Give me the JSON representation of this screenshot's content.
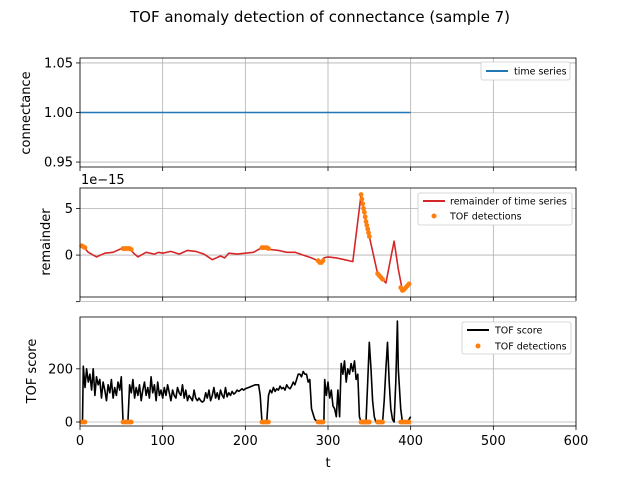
{
  "title": "TOF anomaly detection of connectance (sample 7)",
  "chart_data": [
    {
      "type": "line",
      "ylabel": "connectance",
      "xlim": [
        0,
        600
      ],
      "ylim": [
        0.945,
        1.055
      ],
      "yticks": [
        0.95,
        1.0,
        1.05
      ],
      "ytick_labels": [
        "0.95",
        "1.00",
        "1.05"
      ],
      "grid": true,
      "legend_position": "top-right",
      "series": [
        {
          "name": "time series",
          "color": "#1f77b4",
          "x": [
            0,
            400
          ],
          "y": [
            1.0,
            1.0
          ]
        }
      ]
    },
    {
      "type": "line",
      "ylabel": "remainder",
      "offset_label": "1e−15",
      "xlim": [
        0,
        600
      ],
      "ylim": [
        -4.5,
        7.2
      ],
      "yticks": [
        -5,
        0,
        5
      ],
      "ytick_labels": [
        "",
        "0",
        "5"
      ],
      "grid": true,
      "legend_position": "top-right",
      "series": [
        {
          "name": "remainder of time series",
          "color": "#d62728",
          "x": [
            0,
            5,
            10,
            20,
            30,
            40,
            50,
            60,
            65,
            70,
            80,
            90,
            95,
            100,
            110,
            120,
            130,
            140,
            150,
            160,
            170,
            175,
            180,
            190,
            200,
            210,
            220,
            225,
            230,
            240,
            250,
            260,
            270,
            280,
            285,
            290,
            295,
            300,
            310,
            320,
            330,
            340,
            345,
            350,
            360,
            365,
            370,
            380,
            385,
            390,
            395,
            400
          ],
          "y": [
            1.0,
            0.8,
            0.3,
            -0.2,
            0.2,
            0.3,
            0.7,
            0.7,
            0.2,
            -0.2,
            0.3,
            0.1,
            0.3,
            0.2,
            0.4,
            0.1,
            0.5,
            0.4,
            0.1,
            -0.5,
            -0.1,
            -0.3,
            0.2,
            0.1,
            0.2,
            0.3,
            0.8,
            0.8,
            0.6,
            0.5,
            0.3,
            0.3,
            0.0,
            -0.3,
            -0.5,
            -0.8,
            -0.3,
            -0.2,
            -0.3,
            -0.5,
            -0.7,
            6.5,
            4.0,
            2.0,
            -2.0,
            -2.5,
            -3.0,
            1.5,
            -1.5,
            -3.8,
            -3.3,
            -3.0
          ]
        },
        {
          "name": "TOF detections",
          "color": "#ff7f0e",
          "x": [
            2,
            4,
            6,
            52,
            54,
            56,
            58,
            60,
            62,
            220,
            222,
            224,
            226,
            228,
            288,
            290,
            292,
            294,
            340,
            341,
            342,
            343,
            344,
            345,
            346,
            347,
            348,
            349,
            350,
            360,
            362,
            364,
            366,
            388,
            390,
            392,
            394,
            396,
            398
          ],
          "y": [
            1.0,
            0.9,
            0.8,
            0.7,
            0.7,
            0.7,
            0.7,
            0.7,
            0.6,
            0.8,
            0.8,
            0.8,
            0.8,
            0.7,
            -0.6,
            -0.8,
            -0.8,
            -0.6,
            6.5,
            6.0,
            5.5,
            5.0,
            4.6,
            4.1,
            3.6,
            3.2,
            2.8,
            2.4,
            2.0,
            -2.0,
            -2.2,
            -2.4,
            -2.6,
            -3.5,
            -3.8,
            -3.7,
            -3.5,
            -3.3,
            -3.1
          ]
        }
      ]
    },
    {
      "type": "line",
      "ylabel": "TOF score",
      "xlabel": "t",
      "xlim": [
        0,
        600
      ],
      "ylim": [
        -15,
        395
      ],
      "xticks": [
        0,
        100,
        200,
        300,
        400,
        500,
        600
      ],
      "xtick_labels": [
        "0",
        "100",
        "200",
        "300",
        "400",
        "500",
        "600"
      ],
      "yticks": [
        0,
        200
      ],
      "ytick_labels": [
        "0",
        "200"
      ],
      "grid": true,
      "legend_position": "top-right",
      "series": [
        {
          "name": "TOF score",
          "color": "#000000",
          "x": [
            0,
            3,
            4,
            6,
            8,
            10,
            12,
            14,
            16,
            18,
            20,
            22,
            24,
            26,
            28,
            30,
            32,
            34,
            36,
            38,
            40,
            42,
            44,
            46,
            48,
            50,
            52,
            54,
            56,
            58,
            60,
            62,
            64,
            66,
            68,
            70,
            72,
            74,
            76,
            78,
            80,
            82,
            84,
            86,
            88,
            90,
            92,
            94,
            96,
            98,
            100,
            102,
            104,
            106,
            108,
            110,
            112,
            114,
            116,
            118,
            120,
            122,
            124,
            126,
            128,
            130,
            132,
            134,
            136,
            138,
            140,
            142,
            144,
            146,
            148,
            150,
            152,
            154,
            156,
            158,
            160,
            162,
            164,
            166,
            168,
            170,
            172,
            174,
            176,
            178,
            180,
            182,
            184,
            186,
            188,
            190,
            192,
            194,
            196,
            198,
            200,
            204,
            208,
            212,
            216,
            218,
            220,
            224,
            226,
            228,
            230,
            232,
            234,
            236,
            238,
            240,
            242,
            244,
            246,
            248,
            250,
            252,
            254,
            256,
            258,
            260,
            262,
            264,
            266,
            268,
            270,
            272,
            274,
            276,
            278,
            280,
            282,
            284,
            286,
            288,
            292,
            295,
            296,
            298,
            300,
            302,
            304,
            306,
            308,
            310,
            312,
            314,
            316,
            318,
            320,
            322,
            324,
            326,
            328,
            330,
            332,
            334,
            336,
            338,
            340,
            341,
            342,
            344,
            346,
            348,
            350,
            352,
            354,
            356,
            358,
            360,
            362,
            364,
            366,
            368,
            370,
            372,
            374,
            376,
            378,
            380,
            382,
            384,
            385,
            386,
            388,
            390,
            392,
            394,
            396,
            398,
            400
          ],
          "y": [
            0,
            0,
            210,
            130,
            200,
            150,
            180,
            120,
            200,
            100,
            170,
            140,
            160,
            90,
            150,
            120,
            80,
            140,
            110,
            160,
            90,
            130,
            100,
            150,
            120,
            170,
            5,
            0,
            5,
            0,
            140,
            110,
            160,
            90,
            130,
            100,
            140,
            80,
            120,
            150,
            100,
            130,
            90,
            170,
            110,
            140,
            80,
            150,
            100,
            120,
            90,
            130,
            100,
            140,
            110,
            80,
            120,
            100,
            90,
            130,
            110,
            100,
            140,
            90,
            120,
            80,
            100,
            90,
            80,
            120,
            90,
            80,
            90,
            80,
            75,
            80,
            110,
            90,
            120,
            80,
            100,
            130,
            90,
            110,
            85,
            120,
            100,
            90,
            130,
            95,
            110,
            100,
            115,
            105,
            110,
            120,
            115,
            120,
            125,
            120,
            125,
            130,
            135,
            140,
            140,
            100,
            5,
            0,
            5,
            100,
            120,
            110,
            130,
            115,
            125,
            120,
            135,
            125,
            130,
            120,
            140,
            130,
            125,
            135,
            150,
            140,
            160,
            180,
            180,
            170,
            190,
            180,
            180,
            150,
            160,
            50,
            30,
            10,
            5,
            0,
            0,
            5,
            160,
            100,
            150,
            90,
            120,
            60,
            50,
            20,
            120,
            20,
            220,
            180,
            230,
            150,
            200,
            180,
            220,
            190,
            230,
            160,
            180,
            20,
            0,
            5,
            0,
            5,
            0,
            150,
            300,
            200,
            80,
            20,
            0,
            5,
            0,
            5,
            0,
            80,
            200,
            300,
            150,
            50,
            10,
            0,
            150,
            380,
            200,
            150,
            50,
            0,
            0,
            5,
            0,
            10,
            20
          ]
        },
        {
          "name": "TOF detections",
          "color": "#ff7f0e",
          "x": [
            2,
            4,
            6,
            52,
            54,
            56,
            58,
            60,
            62,
            220,
            222,
            224,
            226,
            228,
            288,
            290,
            292,
            294,
            340,
            341,
            342,
            343,
            344,
            345,
            346,
            347,
            348,
            349,
            350,
            360,
            362,
            364,
            366,
            388,
            390,
            392,
            394,
            396,
            398
          ],
          "y": [
            0,
            0,
            0,
            0,
            0,
            0,
            0,
            0,
            0,
            0,
            0,
            0,
            0,
            0,
            0,
            0,
            0,
            0,
            0,
            0,
            0,
            0,
            0,
            0,
            0,
            0,
            0,
            0,
            0,
            0,
            0,
            0,
            0,
            0,
            0,
            0,
            0,
            0,
            0
          ]
        }
      ]
    }
  ]
}
